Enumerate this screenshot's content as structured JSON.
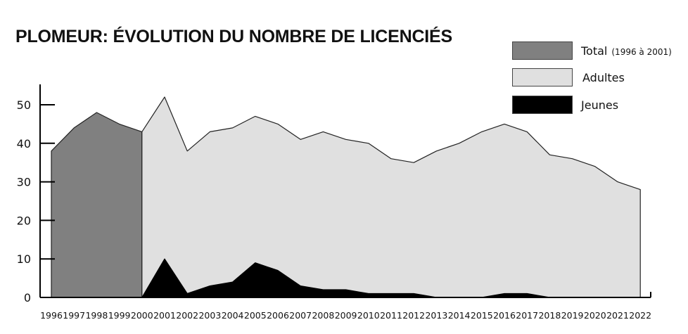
{
  "chart_data": {
    "type": "area",
    "title": "PLOMEUR: ÉVOLUTION DU NOMBRE DE LICENCIÉS",
    "xlabel": "",
    "ylabel": "",
    "ylim": [
      0,
      55
    ],
    "yticks": [
      0,
      10,
      20,
      30,
      40,
      50
    ],
    "categories": [
      "1996",
      "1997",
      "1998",
      "1999",
      "2000",
      "2001",
      "2002",
      "2003",
      "2004",
      "2005",
      "2006",
      "2007",
      "2008",
      "2009",
      "2010",
      "2011",
      "2012",
      "2013",
      "2014",
      "2015",
      "2016",
      "2017",
      "2018",
      "2019",
      "2020",
      "2021",
      "2022"
    ],
    "series": [
      {
        "name": "Total",
        "note": "(1996 à 2001)",
        "color": "#808080",
        "x": [
          "1996",
          "1997",
          "1998",
          "1999",
          "2000"
        ],
        "values": [
          38,
          44,
          48,
          45,
          43
        ]
      },
      {
        "name": "Adultes",
        "color": "#e0e0e0",
        "x": [
          "2000",
          "2001",
          "2002",
          "2003",
          "2004",
          "2005",
          "2006",
          "2007",
          "2008",
          "2009",
          "2010",
          "2011",
          "2012",
          "2013",
          "2014",
          "2015",
          "2016",
          "2017",
          "2018",
          "2019",
          "2020",
          "2021",
          "2022"
        ],
        "values": [
          43,
          52,
          38,
          43,
          44,
          47,
          45,
          41,
          43,
          41,
          40,
          36,
          35,
          38,
          40,
          43,
          45,
          43,
          37,
          36,
          34,
          30,
          28
        ]
      },
      {
        "name": "Jeunes",
        "color": "#000000",
        "x": [
          "2000",
          "2001",
          "2002",
          "2003",
          "2004",
          "2005",
          "2006",
          "2007",
          "2008",
          "2009",
          "2010",
          "2011",
          "2012",
          "2013",
          "2014",
          "2015",
          "2016",
          "2017",
          "2018",
          "2019",
          "2020",
          "2021",
          "2022"
        ],
        "values": [
          0,
          10,
          1,
          3,
          4,
          9,
          7,
          3,
          2,
          2,
          1,
          1,
          1,
          0,
          0,
          0,
          1,
          1,
          0,
          0,
          0,
          0,
          0
        ]
      }
    ],
    "legend_position": "top-right",
    "grid": false
  }
}
